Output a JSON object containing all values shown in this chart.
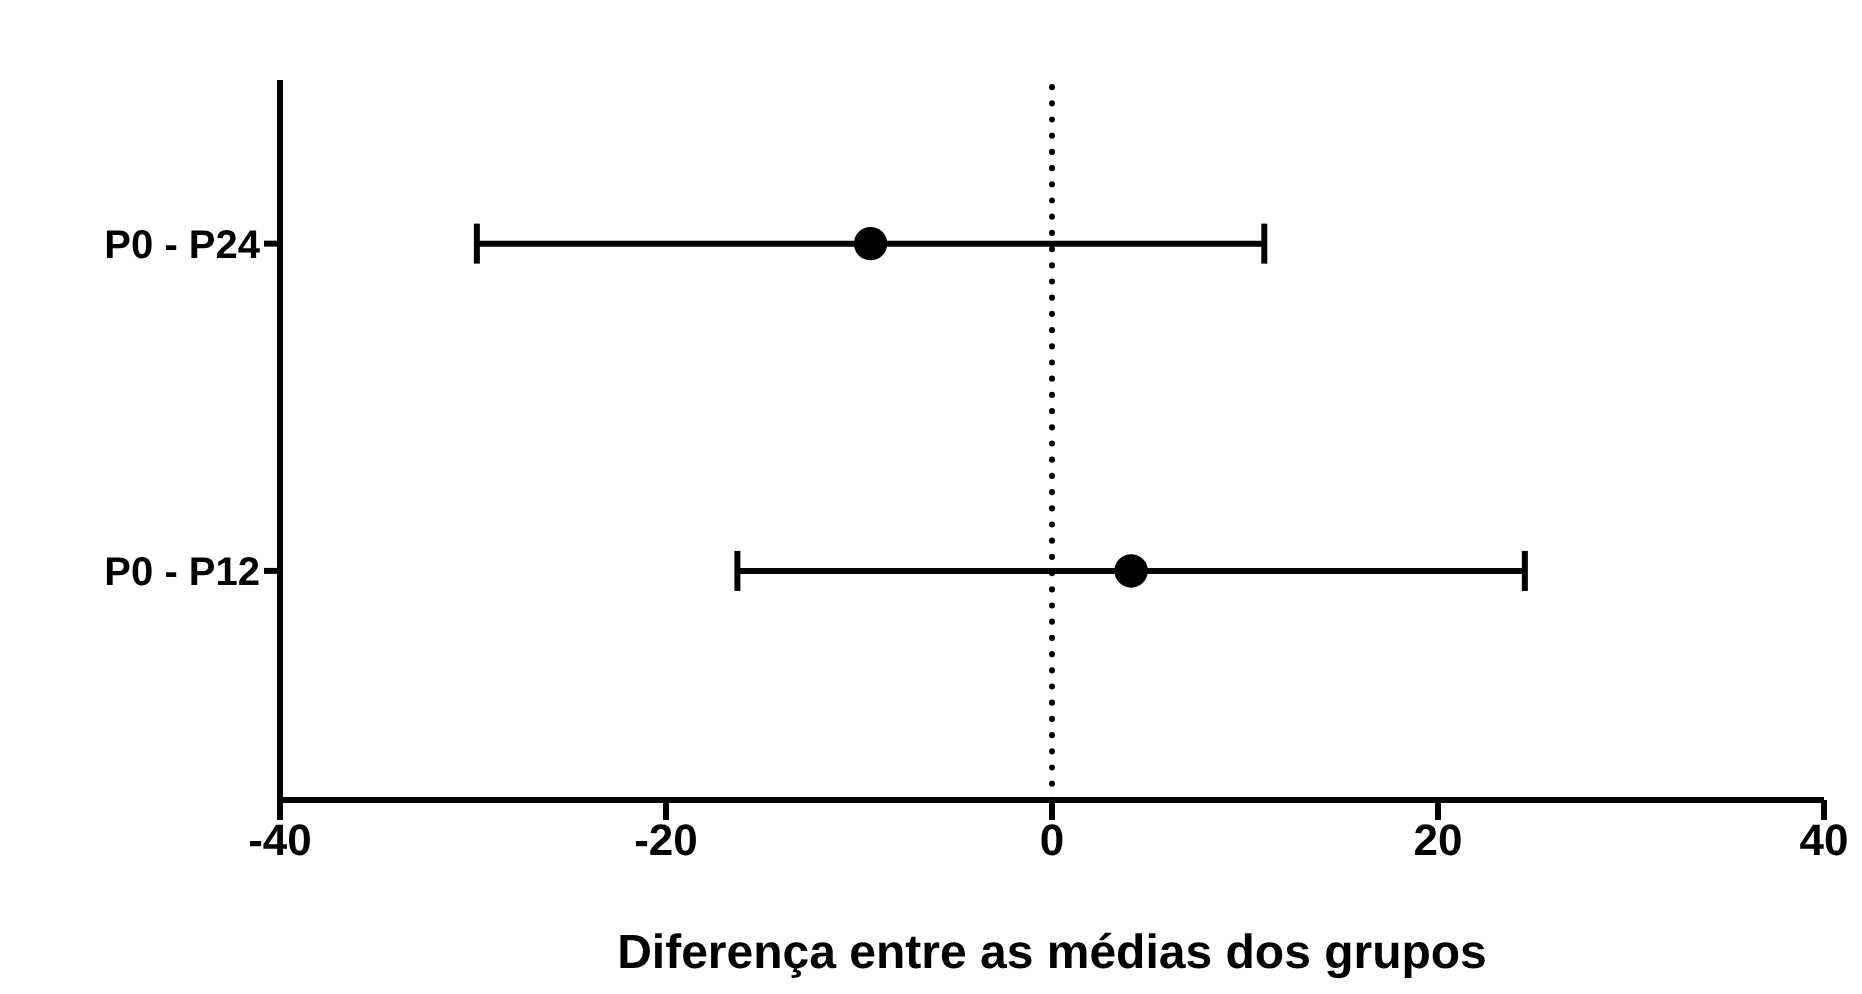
{
  "chart_data": {
    "type": "scatter",
    "orientation": "horizontal",
    "categories": [
      "P0 - P24",
      "P0 - P12"
    ],
    "values": [
      -9.4,
      4.1
    ],
    "errors": [
      20.4,
      20.4
    ],
    "color": "#000000",
    "marker": "circle",
    "grid": false,
    "legend": false,
    "xlim": [
      -40,
      40
    ],
    "xticks": [
      -40,
      -20,
      0,
      20,
      40
    ],
    "xlabel": "Diferença entre as médias dos grupos",
    "ref_lines": [
      {
        "axis": "x",
        "value": 0,
        "line_style": "dotted",
        "color": "#000000"
      }
    ]
  }
}
